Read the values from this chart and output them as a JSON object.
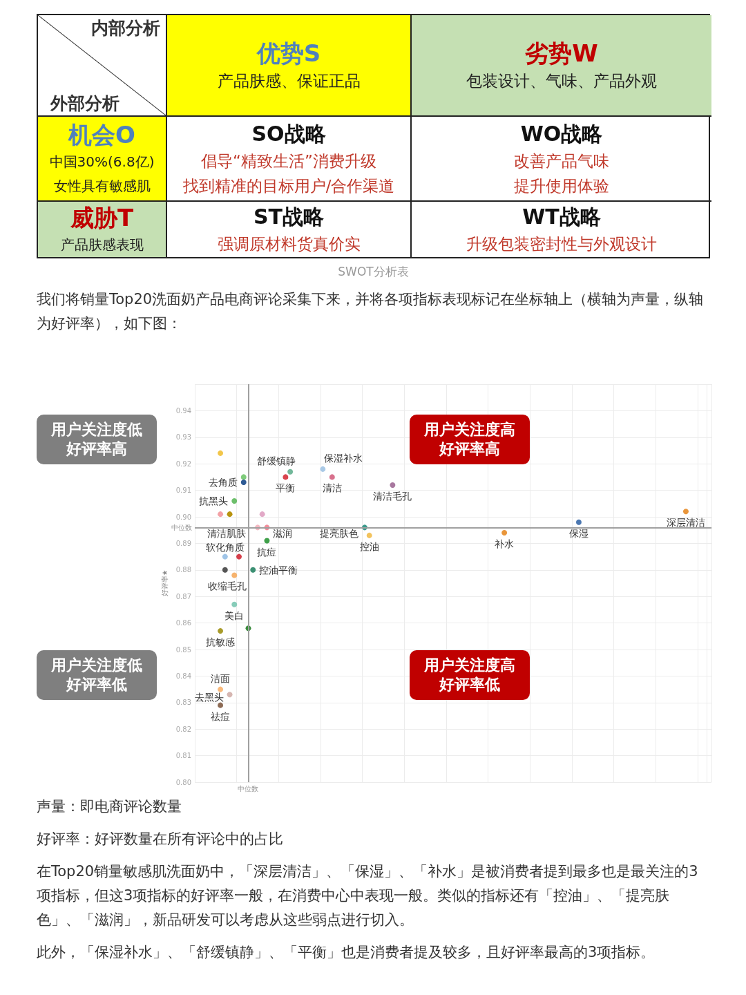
{
  "chart_data": [
    {
      "type": "other",
      "title": "SWOT分析表",
      "annotations": [
        "内部分析",
        "外部分析",
        "优势S",
        "产品肤感、保证正品",
        "劣势W",
        "包装设计、气味、产品外观",
        "机会O",
        "中国30%(6.8亿)",
        "女性具有敏感肌",
        "SO战略",
        "倡导“精致生活”消费升级",
        "找到精准的目标用户/合作渠道",
        "WO战略",
        "改善产品气味",
        "提升使用体验",
        "威胁T",
        "产品肤感表现",
        "ST战略",
        "强调原材料货真价实",
        "WT战略",
        "升级包装密封性与外观设计"
      ]
    },
    {
      "type": "scatter",
      "ylabel": "好评率★",
      "categories": [
        null,
        null,
        null,
        null,
        null,
        null,
        null,
        null,
        null,
        null,
        null,
        null,
        null,
        null,
        null,
        null,
        null,
        null,
        null,
        null,
        null,
        null,
        null,
        null,
        null,
        null,
        null,
        null,
        null,
        null,
        null,
        null,
        null,
        null,
        null,
        null,
        null,
        null,
        null,
        null,
        null,
        null,
        null,
        null,
        null,
        null,
        null,
        null,
        null,
        null,
        null,
        null,
        null,
        null,
        null,
        null,
        null,
        null,
        null,
        null,
        null,
        null,
        null,
        null,
        null,
        null,
        null,
        null,
        null,
        null,
        null,
        null,
        null,
        null,
        null,
        null,
        null,
        null,
        null,
        null,
        null,
        null,
        null,
        null,
        null,
        null,
        null,
        null,
        null,
        null,
        null,
        null,
        null,
        null,
        null,
        null,
        null,
        null,
        null,
        null,
        null,
        null,
        null,
        null,
        null,
        null,
        null,
        null,
        null,
        null,
        null
      ],
      "ylim": [
        0.8,
        0.95
      ],
      "yticks": [
        {
          "value": 0.8,
          "label": "0.80"
        },
        0.81,
        0.82,
        0.83,
        0.84,
        0.85,
        0.86,
        0.87,
        0.88,
        0.89,
        {
          "value": 0.9,
          "label": "0.90"
        },
        0.91,
        0.92,
        0.93,
        0.94,
        {
          "value": 0.95,
          "label": null
        }
      ],
      "grid": true,
      "tick_labels": "y",
      "marker": "circle",
      "ref_lines": [
        {
          "axis": "y",
          "value": 0.896,
          "label": "中位数",
          "color": "#a0a0a0"
        }
      ],
      "series": [
        {
          "values": [
            null,
            null,
            null,
            null,
            null,
            0.924,
            0.88,
            0.901,
            0.906,
            0.885,
            0.915,
            0.858,
            0.88,
            0.896,
            0.901,
            0.896,
            null,
            null,
            null,
            0.915,
            0.917,
            null,
            null,
            null,
            null,
            null,
            null,
            0.918,
            null,
            0.915,
            null,
            null,
            null,
            null,
            null,
            null,
            0.896,
            0.893,
            null,
            null,
            null,
            null,
            0.912,
            null,
            null,
            null,
            null,
            null,
            null,
            null,
            null,
            null,
            null,
            null,
            null,
            null,
            null,
            null,
            null,
            null,
            null,
            null,
            null,
            null,
            null,
            null,
            0.894,
            null,
            null,
            null,
            null,
            null,
            null,
            null,
            null,
            null,
            null,
            null,
            null,
            null,
            null,
            null,
            0.898,
            null,
            null,
            null,
            null,
            null,
            null,
            null,
            null,
            null,
            null,
            null,
            null,
            null,
            null,
            null,
            null,
            null,
            null,
            null,
            null,
            null,
            null,
            0.902,
            null,
            null,
            null,
            null,
            null
          ],
          "colors": [
            null,
            null,
            null,
            null,
            null,
            "#f2c649",
            "#555555",
            "#b8930f",
            "#6dbf6b",
            "#d63f4b",
            "#7fcc7a",
            "#3a8b3d",
            "#3c9073",
            "#f4b8c1",
            "#e2a9c7",
            "#f28d9b",
            null,
            null,
            null,
            "#d9454e",
            "#72b89a",
            null,
            null,
            null,
            null,
            null,
            null,
            "#a9c9e6",
            null,
            "#d8708c",
            null,
            null,
            null,
            null,
            null,
            null,
            "#3b9a8c",
            "#f3c35d",
            null,
            null,
            null,
            null,
            "#a8789f",
            null,
            null,
            null,
            null,
            null,
            null,
            null,
            null,
            null,
            null,
            null,
            null,
            null,
            null,
            null,
            null,
            null,
            null,
            null,
            null,
            null,
            null,
            null,
            "#e9963b",
            null,
            null,
            null,
            null,
            null,
            null,
            null,
            null,
            null,
            null,
            null,
            null,
            null,
            null,
            null,
            "#4b77b1",
            null,
            null,
            null,
            null,
            null,
            null,
            null,
            null,
            null,
            null,
            null,
            null,
            null,
            null,
            null,
            null,
            null,
            null,
            null,
            null,
            null,
            null,
            "#e9963b",
            null,
            null,
            null,
            null,
            null
          ],
          "value_labels": [
            null,
            null,
            null,
            null,
            null,
            null,
            null,
            null,
            "抗黑头",
            null,
            null,
            null,
            "控油平衡",
            "清洁肌肤",
            null,
            "滋润",
            null,
            null,
            null,
            "平衡",
            "舒缓镇静",
            null,
            null,
            null,
            null,
            null,
            null,
            "保湿补水",
            null,
            "清洁",
            null,
            null,
            null,
            null,
            null,
            null,
            "提亮肤色",
            "控油",
            null,
            null,
            null,
            null,
            "清洁毛孔",
            null,
            null,
            null,
            null,
            null,
            null,
            null,
            null,
            null,
            null,
            null,
            null,
            null,
            null,
            null,
            null,
            null,
            null,
            null,
            null,
            null,
            null,
            null,
            "补水",
            null,
            null,
            null,
            null,
            null,
            null,
            null,
            null,
            null,
            null,
            null,
            null,
            null,
            null,
            null,
            "保湿",
            null,
            null,
            null,
            null,
            null,
            null,
            null,
            null,
            null,
            null,
            null,
            null,
            null,
            null,
            null,
            null,
            null,
            null,
            null,
            null,
            null,
            null,
            "深层清洁",
            null,
            null,
            null,
            null,
            null
          ]
        },
        {
          "values": [
            null,
            null,
            null,
            null,
            null,
            0.901,
            0.885,
            0.833,
            0.878,
            null,
            0.913,
            null,
            null,
            null,
            null,
            0.891,
            null,
            null,
            null,
            null,
            null,
            null,
            null,
            null,
            null,
            null,
            null,
            null,
            null,
            null,
            null,
            null,
            null,
            null,
            null,
            null,
            null,
            null,
            null,
            null,
            null,
            null,
            null,
            null,
            null,
            null,
            null,
            null,
            null,
            null,
            null,
            null,
            null,
            null,
            null,
            null,
            null,
            null,
            null,
            null,
            null,
            null,
            null,
            null,
            null,
            null,
            null,
            null,
            null,
            null,
            null,
            null,
            null,
            null,
            null,
            null,
            null,
            null,
            null,
            null,
            null,
            null,
            null,
            null,
            null,
            null,
            null,
            null,
            null,
            null,
            null,
            null,
            null,
            null,
            null,
            null,
            null,
            null,
            null,
            null,
            null,
            null,
            null,
            null,
            null,
            null,
            null,
            null,
            null,
            null,
            null
          ],
          "colors": [
            null,
            null,
            null,
            null,
            null,
            "#f3a1a6",
            "#9fc4e7",
            "#d6b6b1",
            "#f6b36e",
            null,
            "#2e5a94",
            null,
            null,
            null,
            null,
            "#40a04a",
            null,
            null,
            null,
            null,
            null,
            null,
            null,
            null,
            null,
            null,
            null,
            null,
            null,
            null,
            null,
            null,
            null,
            null,
            null,
            null,
            null,
            null,
            null,
            null,
            null,
            null,
            null,
            null,
            null,
            null,
            null,
            null,
            null,
            null,
            null,
            null,
            null,
            null,
            null,
            null,
            null,
            null,
            null,
            null,
            null,
            null,
            null,
            null,
            null,
            null,
            null,
            null,
            null,
            null,
            null,
            null,
            null,
            null,
            null,
            null,
            null,
            null,
            null,
            null,
            null,
            null,
            null,
            null,
            null,
            null,
            null,
            null,
            null,
            null,
            null,
            null,
            null,
            null,
            null,
            null,
            null,
            null,
            null,
            null,
            null,
            null,
            null,
            null,
            null,
            null,
            null,
            null,
            null,
            null,
            null
          ],
          "value_labels": [
            null,
            null,
            null,
            null,
            null,
            null,
            "软化角质",
            "去黑头",
            "收缩毛孔",
            null,
            "去角质",
            null,
            null,
            null,
            null,
            "抗痘",
            null,
            null,
            null,
            null,
            null,
            null,
            null,
            null,
            null,
            null,
            null,
            null,
            null,
            null,
            null,
            null,
            null,
            null,
            null,
            null,
            null,
            null,
            null,
            null,
            null,
            null,
            null,
            null,
            null,
            null,
            null,
            null,
            null,
            null,
            null,
            null,
            null,
            null,
            null,
            null,
            null,
            null,
            null,
            null,
            null,
            null,
            null,
            null,
            null,
            null,
            null,
            null,
            null,
            null,
            null,
            null,
            null,
            null,
            null,
            null,
            null,
            null,
            null,
            null,
            null,
            null,
            null,
            null,
            null,
            null,
            null,
            null,
            null,
            null,
            null,
            null,
            null,
            null,
            null,
            null,
            null,
            null,
            null,
            null,
            null,
            null,
            null,
            null,
            null,
            null,
            null,
            null,
            null,
            null,
            null
          ]
        },
        {
          "values": [
            null,
            null,
            null,
            null,
            null,
            0.857,
            null,
            null,
            0.867,
            null,
            null,
            null,
            null,
            null,
            null,
            null,
            null,
            null,
            null,
            null,
            null,
            null,
            null,
            null,
            null,
            null,
            null,
            null,
            null,
            null,
            null,
            null,
            null,
            null,
            null,
            null,
            null,
            null,
            null,
            null,
            null,
            null,
            null,
            null,
            null,
            null,
            null,
            null,
            null,
            null,
            null,
            null,
            null,
            null,
            null,
            null,
            null,
            null,
            null,
            null,
            null,
            null,
            null,
            null,
            null,
            null,
            null,
            null,
            null,
            null,
            null,
            null,
            null,
            null,
            null,
            null,
            null,
            null,
            null,
            null,
            null,
            null,
            null,
            null,
            null,
            null,
            null,
            null,
            null,
            null,
            null,
            null,
            null,
            null,
            null,
            null,
            null,
            null,
            null,
            null,
            null,
            null,
            null,
            null,
            null,
            null,
            null,
            null,
            null,
            null,
            null
          ],
          "colors": [
            null,
            null,
            null,
            null,
            null,
            "#a89b2a",
            null,
            null,
            "#87ccb9",
            null,
            null,
            null,
            null,
            null,
            null,
            null,
            null,
            null,
            null,
            null,
            null,
            null,
            null,
            null,
            null,
            null,
            null,
            null,
            null,
            null,
            null,
            null,
            null,
            null,
            null,
            null,
            null,
            null,
            null,
            null,
            null,
            null,
            null,
            null,
            null,
            null,
            null,
            null,
            null,
            null,
            null,
            null,
            null,
            null,
            null,
            null,
            null,
            null,
            null,
            null,
            null,
            null,
            null,
            null,
            null,
            null,
            null,
            null,
            null,
            null,
            null,
            null,
            null,
            null,
            null,
            null,
            null,
            null,
            null,
            null,
            null,
            null,
            null,
            null,
            null,
            null,
            null,
            null,
            null,
            null,
            null,
            null,
            null,
            null,
            null,
            null,
            null,
            null,
            null,
            null,
            null,
            null,
            null,
            null,
            null,
            null,
            null,
            null,
            null,
            null,
            null
          ],
          "value_labels": [
            null,
            null,
            null,
            null,
            null,
            "抗敏感",
            null,
            null,
            "美白",
            null,
            null,
            null,
            null,
            null,
            null,
            null,
            null,
            null,
            null,
            null,
            null,
            null,
            null,
            null,
            null,
            null,
            null,
            null,
            null,
            null,
            null,
            null,
            null,
            null,
            null,
            null,
            null,
            null,
            null,
            null,
            null,
            null,
            null,
            null,
            null,
            null,
            null,
            null,
            null,
            null,
            null,
            null,
            null,
            null,
            null,
            null,
            null,
            null,
            null,
            null,
            null,
            null,
            null,
            null,
            null,
            null,
            null,
            null,
            null,
            null,
            null,
            null,
            null,
            null,
            null,
            null,
            null,
            null,
            null,
            null,
            null,
            null,
            null,
            null,
            null,
            null,
            null,
            null,
            null,
            null,
            null,
            null,
            null,
            null,
            null,
            null,
            null,
            null,
            null,
            null,
            null,
            null,
            null,
            null,
            null,
            null,
            null,
            null,
            null,
            null,
            null
          ]
        },
        {
          "values": [
            null,
            null,
            null,
            null,
            null,
            0.835,
            null,
            null,
            null,
            null,
            null,
            null,
            null,
            null,
            null,
            null,
            null,
            null,
            null,
            null,
            null,
            null,
            null,
            null,
            null,
            null,
            null,
            null,
            null,
            null,
            null,
            null,
            null,
            null,
            null,
            null,
            null,
            null,
            null,
            null,
            null,
            null,
            null,
            null,
            null,
            null,
            null,
            null,
            null,
            null,
            null,
            null,
            null,
            null,
            null,
            null,
            null,
            null,
            null,
            null,
            null,
            null,
            null,
            null,
            null,
            null,
            null,
            null,
            null,
            null,
            null,
            null,
            null,
            null,
            null,
            null,
            null,
            null,
            null,
            null,
            null,
            null,
            null,
            null,
            null,
            null,
            null,
            null,
            null,
            null,
            null,
            null,
            null,
            null,
            null,
            null,
            null,
            null,
            null,
            null,
            null,
            null,
            null,
            null,
            null,
            null,
            null,
            null,
            null,
            null,
            null
          ],
          "colors": [
            null,
            null,
            null,
            null,
            null,
            "#f9ba7c",
            null,
            null,
            null,
            null,
            null,
            null,
            null,
            null,
            null,
            null,
            null,
            null,
            null,
            null,
            null,
            null,
            null,
            null,
            null,
            null,
            null,
            null,
            null,
            null,
            null,
            null,
            null,
            null,
            null,
            null,
            null,
            null,
            null,
            null,
            null,
            null,
            null,
            null,
            null,
            null,
            null,
            null,
            null,
            null,
            null,
            null,
            null,
            null,
            null,
            null,
            null,
            null,
            null,
            null,
            null,
            null,
            null,
            null,
            null,
            null,
            null,
            null,
            null,
            null,
            null,
            null,
            null,
            null,
            null,
            null,
            null,
            null,
            null,
            null,
            null,
            null,
            null,
            null,
            null,
            null,
            null,
            null,
            null,
            null,
            null,
            null,
            null,
            null,
            null,
            null,
            null,
            null,
            null,
            null,
            null,
            null,
            null,
            null,
            null,
            null,
            null,
            null,
            null,
            null,
            null
          ],
          "value_labels": [
            null,
            null,
            null,
            null,
            null,
            "洁面",
            null,
            null,
            null,
            null,
            null,
            null,
            null,
            null,
            null,
            null,
            null,
            null,
            null,
            null,
            null,
            null,
            null,
            null,
            null,
            null,
            null,
            null,
            null,
            null,
            null,
            null,
            null,
            null,
            null,
            null,
            null,
            null,
            null,
            null,
            null,
            null,
            null,
            null,
            null,
            null,
            null,
            null,
            null,
            null,
            null,
            null,
            null,
            null,
            null,
            null,
            null,
            null,
            null,
            null,
            null,
            null,
            null,
            null,
            null,
            null,
            null,
            null,
            null,
            null,
            null,
            null,
            null,
            null,
            null,
            null,
            null,
            null,
            null,
            null,
            null,
            null,
            null,
            null,
            null,
            null,
            null,
            null,
            null,
            null,
            null,
            null,
            null,
            null,
            null,
            null,
            null,
            null,
            null,
            null,
            null,
            null,
            null,
            null,
            null,
            null,
            null,
            null,
            null,
            null,
            null
          ]
        },
        {
          "values": [
            null,
            null,
            null,
            null,
            null,
            0.829,
            null,
            null,
            null,
            null,
            null,
            null,
            null,
            null,
            null,
            null,
            null,
            null,
            null,
            null,
            null,
            null,
            null,
            null,
            null,
            null,
            null,
            null,
            null,
            null,
            null,
            null,
            null,
            null,
            null,
            null,
            null,
            null,
            null,
            null,
            null,
            null,
            null,
            null,
            null,
            null,
            null,
            null,
            null,
            null,
            null,
            null,
            null,
            null,
            null,
            null,
            null,
            null,
            null,
            null,
            null,
            null,
            null,
            null,
            null,
            null,
            null,
            null,
            null,
            null,
            null,
            null,
            null,
            null,
            null,
            null,
            null,
            null,
            null,
            null,
            null,
            null,
            null,
            null,
            null,
            null,
            null,
            null,
            null,
            null,
            null,
            null,
            null,
            null,
            null,
            null,
            null,
            null,
            null,
            null,
            null,
            null,
            null,
            null,
            null,
            null,
            null,
            null,
            null,
            null,
            null
          ],
          "colors": [
            null,
            null,
            null,
            null,
            null,
            "#8d6b55",
            null,
            null,
            null,
            null,
            null,
            null,
            null,
            null,
            null,
            null,
            null,
            null,
            null,
            null,
            null,
            null,
            null,
            null,
            null,
            null,
            null,
            null,
            null,
            null,
            null,
            null,
            null,
            null,
            null,
            null,
            null,
            null,
            null,
            null,
            null,
            null,
            null,
            null,
            null,
            null,
            null,
            null,
            null,
            null,
            null,
            null,
            null,
            null,
            null,
            null,
            null,
            null,
            null,
            null,
            null,
            null,
            null,
            null,
            null,
            null,
            null,
            null,
            null,
            null,
            null,
            null,
            null,
            null,
            null,
            null,
            null,
            null,
            null,
            null,
            null,
            null,
            null,
            null,
            null,
            null,
            null,
            null,
            null,
            null,
            null,
            null,
            null,
            null,
            null,
            null,
            null,
            null,
            null,
            null,
            null,
            null,
            null,
            null,
            null,
            null,
            null,
            null,
            null,
            null,
            null
          ],
          "value_labels": [
            null,
            null,
            null,
            null,
            null,
            "祛痘",
            null,
            null,
            null,
            null,
            null,
            null,
            null,
            null,
            null,
            null,
            null,
            null,
            null,
            null,
            null,
            null,
            null,
            null,
            null,
            null,
            null,
            null,
            null,
            null,
            null,
            null,
            null,
            null,
            null,
            null,
            null,
            null,
            null,
            null,
            null,
            null,
            null,
            null,
            null,
            null,
            null,
            null,
            null,
            null,
            null,
            null,
            null,
            null,
            null,
            null,
            null,
            null,
            null,
            null,
            null,
            null,
            null,
            null,
            null,
            null,
            null,
            null,
            null,
            null,
            null,
            null,
            null,
            null,
            null,
            null,
            null,
            null,
            null,
            null,
            null,
            null,
            null,
            null,
            null,
            null,
            null,
            null,
            null,
            null,
            null,
            null,
            null,
            null,
            null,
            null,
            null,
            null,
            null,
            null,
            null,
            null,
            null,
            null,
            null,
            null,
            null,
            null,
            null,
            null,
            null
          ]
        }
      ],
      "annotations": [
        "用户关注度低好评率高",
        "用户关注度高好评率高",
        "用户关注度低好评率低",
        "用户关注度高好评率低",
        "我们将销量Top20洗面奶产品电商评论采集下来，并将各项指标表现标记在坐标轴上（横轴为声量，纵轴为好评率），如下图：",
        "声量：即电商评论数量",
        "好评率：好评数量在所有评论中的占比",
        "在Top20销量敏感肌洗面奶中，「深层清洁」、「保湿」、「补水」是被消费者提到最多也是最关注的3项指标，但这3项指标的好评率一般，在消费中心中表现一般。类似的指标还有「控油」、「提亮肤色」、「滋润」，新品研发可以考虑从这些弱点进行切入。",
        "此外，「保湿补水」、「舒缓镇静」、「平衡」也是消费者提及较多，且好评率最高的3项指标。",
        "中位数"
      ]
    }
  ]
}
